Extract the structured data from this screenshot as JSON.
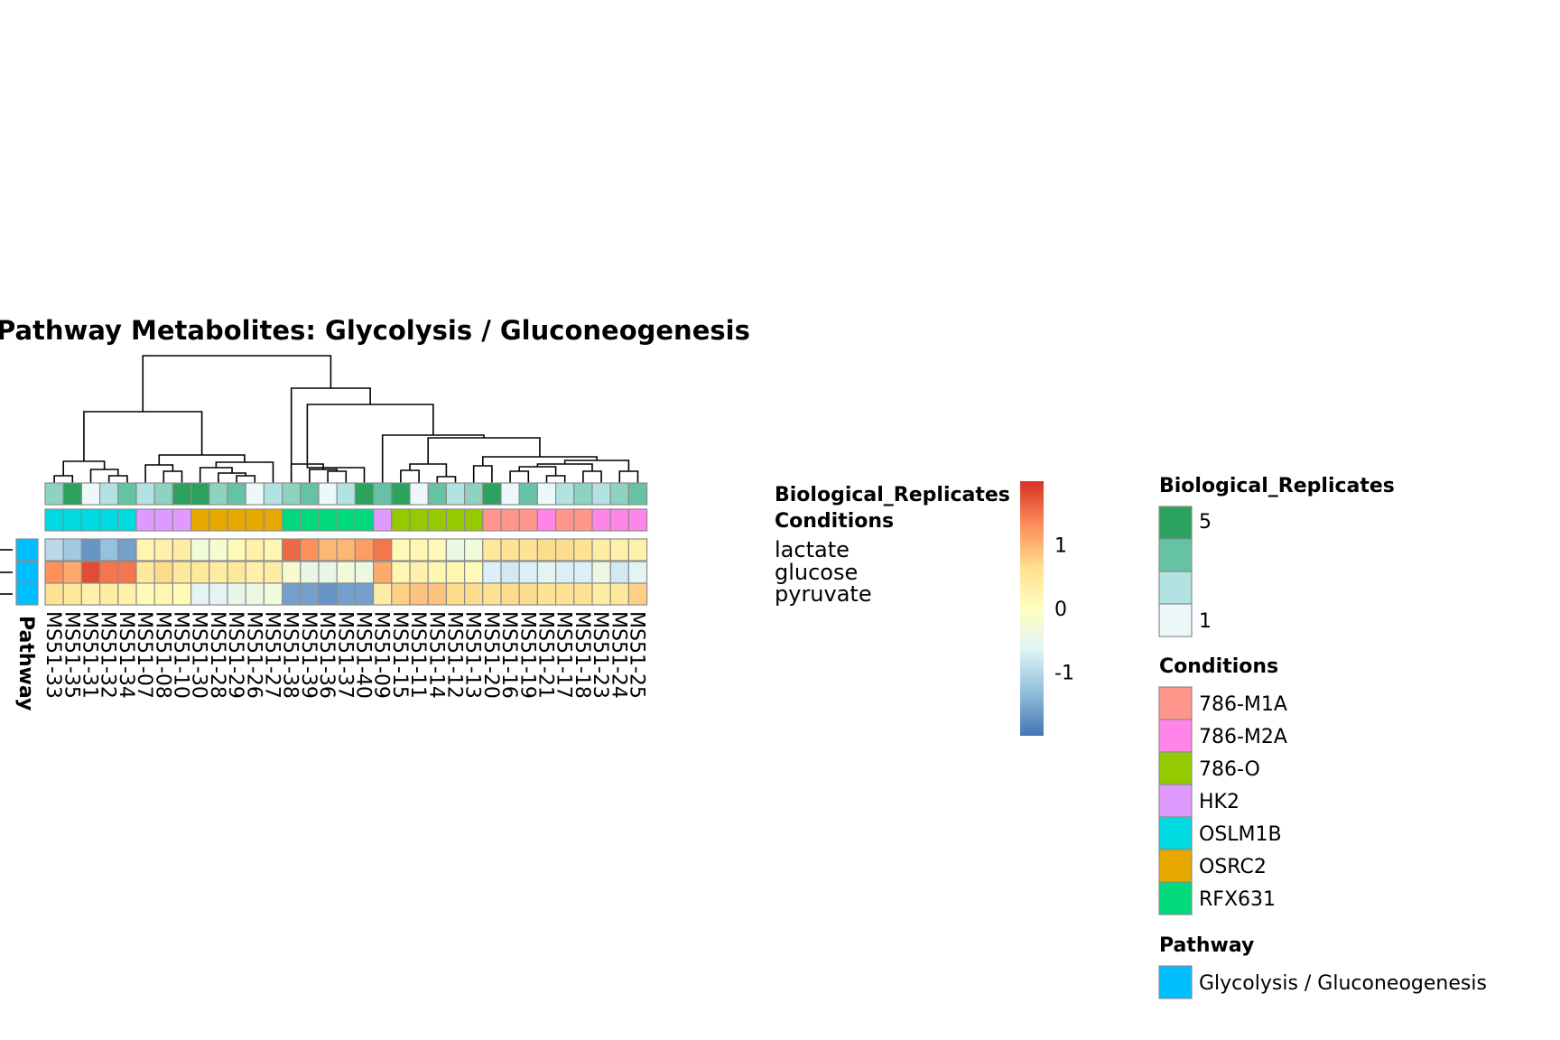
{
  "chart_data": {
    "type": "heatmap",
    "title": "Pathway  Metabolites:  Glycolysis / Gluconeogenesis",
    "columns": [
      "MS51-33",
      "MS51-35",
      "MS51-31",
      "MS51-32",
      "MS51-34",
      "MS51-07",
      "MS51-08",
      "MS51-10",
      "MS51-30",
      "MS51-28",
      "MS51-29",
      "MS51-26",
      "MS51-27",
      "MS51-38",
      "MS51-39",
      "MS51-36",
      "MS51-37",
      "MS51-40",
      "MS51-09",
      "MS51-15",
      "MS51-11",
      "MS51-14",
      "MS51-12",
      "MS51-13",
      "MS51-20",
      "MS51-16",
      "MS51-19",
      "MS51-21",
      "MS51-17",
      "MS51-18",
      "MS51-23",
      "MS51-24",
      "MS51-25"
    ],
    "rows": [
      "lactate",
      "glucose",
      "pyruvate"
    ],
    "values": [
      [
        -1.0,
        -1.2,
        -1.7,
        -1.3,
        -1.6,
        0.2,
        0.3,
        0.4,
        -0.3,
        -0.2,
        0.1,
        0.3,
        0.2,
        1.6,
        1.3,
        1.0,
        1.0,
        1.2,
        1.5,
        0.1,
        0.2,
        0.1,
        -0.4,
        -0.3,
        0.5,
        0.6,
        0.6,
        0.7,
        0.7,
        0.6,
        0.4,
        0.3,
        0.3
      ],
      [
        1.3,
        1.1,
        1.8,
        1.5,
        1.5,
        0.5,
        0.7,
        0.5,
        0.5,
        0.4,
        0.5,
        0.3,
        0.4,
        -0.2,
        -0.5,
        -0.5,
        -0.3,
        -0.4,
        1.1,
        0.2,
        0.3,
        0.2,
        0.2,
        0.1,
        -0.7,
        -0.8,
        -0.7,
        -0.6,
        -0.7,
        -0.7,
        -0.4,
        -0.8,
        -0.6
      ],
      [
        0.6,
        0.5,
        0.3,
        0.4,
        0.3,
        0.1,
        0.2,
        0.1,
        -0.6,
        -0.6,
        -0.5,
        -0.4,
        -0.3,
        -1.6,
        -1.6,
        -1.7,
        -1.6,
        -1.6,
        0.4,
        0.8,
        0.9,
        0.9,
        0.7,
        0.7,
        0.6,
        0.7,
        0.7,
        0.6,
        0.6,
        0.6,
        0.4,
        0.5,
        0.8
      ]
    ],
    "annotations": {
      "Biological_Replicates_label": "Biological_Replicates",
      "Biological_Replicates": [
        3,
        5,
        1,
        2,
        4,
        2,
        3,
        5,
        5,
        3,
        4,
        1,
        2,
        3,
        4,
        1,
        2,
        5,
        4,
        5,
        1,
        4,
        2,
        3,
        5,
        1,
        4,
        1,
        2,
        3,
        2,
        3,
        4
      ],
      "Conditions_label": "Conditions",
      "Conditions": [
        "OSLM1B",
        "OSLM1B",
        "OSLM1B",
        "OSLM1B",
        "OSLM1B",
        "HK2",
        "HK2",
        "HK2",
        "OSRC2",
        "OSRC2",
        "OSRC2",
        "OSRC2",
        "OSRC2",
        "RFX631",
        "RFX631",
        "RFX631",
        "RFX631",
        "RFX631",
        "HK2",
        "786-O",
        "786-O",
        "786-O",
        "786-O",
        "786-O",
        "786-M1A",
        "786-M1A",
        "786-M1A",
        "786-M2A",
        "786-M1A",
        "786-M1A",
        "786-M2A",
        "786-M2A",
        "786-M2A"
      ],
      "Pathway_label": "Pathway",
      "Pathway": [
        "Glycolysis / Gluconeogenesis",
        "Glycolysis / Gluconeogenesis",
        "Glycolysis / Gluconeogenesis"
      ]
    },
    "colorbar": {
      "ticks": [
        1,
        0,
        -1
      ],
      "range": [
        -2,
        2
      ],
      "colors": [
        "#4575b4",
        "#91bfdb",
        "#e0f3f8",
        "#ffffbf",
        "#fee090",
        "#fc8d59",
        "#d73027"
      ]
    },
    "legends": [
      {
        "title": "Biological_Replicates",
        "labels": [
          "5",
          "",
          "",
          "1"
        ],
        "colors": [
          "#2ca25f",
          "#66c2a4",
          "#b2e2e2",
          "#edf8fb"
        ]
      },
      {
        "title": "Conditions",
        "labels": [
          "786-M1A",
          "786-M2A",
          "786-O",
          "HK2",
          "OSLM1B",
          "OSRC2",
          "RFX631"
        ],
        "colors": [
          "#ff968c",
          "#ff85e8",
          "#96ca00",
          "#e09aff",
          "#00dae0",
          "#e7a900",
          "#00d97c"
        ]
      },
      {
        "title": "Pathway",
        "labels": [
          "Glycolysis / Gluconeogenesis"
        ],
        "colors": [
          "#00bfff"
        ]
      }
    ],
    "replicate_colors": {
      "1": "#edf8fb",
      "2": "#b2e2e2",
      "3": "#8dd3c0",
      "4": "#66c2a4",
      "5": "#2ca25f"
    },
    "condition_colors": {
      "786-M1A": "#ff968c",
      "786-M2A": "#ff85e8",
      "786-O": "#96ca00",
      "HK2": "#e09aff",
      "OSLM1B": "#00dae0",
      "OSRC2": "#e7a900",
      "RFX631": "#00d97c"
    },
    "pathway_color": "#00bfff"
  }
}
